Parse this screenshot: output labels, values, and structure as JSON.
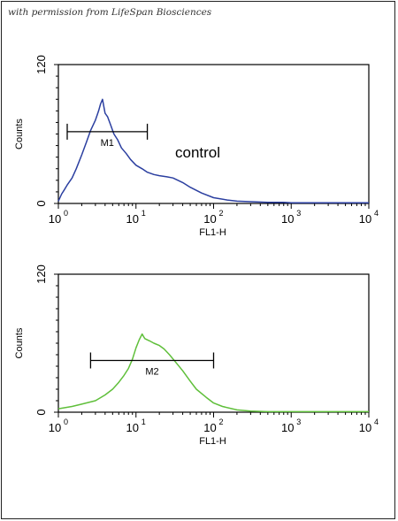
{
  "credit": "with permission from LifeSpan Biosciences",
  "chart_data": [
    {
      "type": "line",
      "ylabel": "Counts",
      "xlabel": "FL1-H",
      "x_scale": "log",
      "xlim": [
        1,
        10000
      ],
      "ylim": [
        0,
        120
      ],
      "y_ticks": [
        "0",
        "120"
      ],
      "x_ticks": [
        {
          "base": "10",
          "exp": "0"
        },
        {
          "base": "10",
          "exp": "1"
        },
        {
          "base": "10",
          "exp": "2"
        },
        {
          "base": "10",
          "exp": "3"
        },
        {
          "base": "10",
          "exp": "4"
        }
      ],
      "color": "#2b3fa0",
      "annotation": "control",
      "marker": {
        "label": "M1",
        "x_start": 1.3,
        "x_end": 14,
        "y": 62
      },
      "x": [
        1,
        1.1,
        1.2,
        1.3,
        1.5,
        1.7,
        2.0,
        2.3,
        2.6,
        3.0,
        3.3,
        3.5,
        3.7,
        4.0,
        4.3,
        4.7,
        5.2,
        5.8,
        6.5,
        7.5,
        8.5,
        10,
        12,
        14,
        17,
        20,
        25,
        30,
        40,
        50,
        70,
        100,
        150,
        200,
        300,
        500,
        800,
        1000,
        2000,
        5000,
        10000
      ],
      "y": [
        2,
        8,
        12,
        16,
        22,
        30,
        42,
        53,
        63,
        72,
        80,
        86,
        90,
        78,
        75,
        68,
        60,
        55,
        48,
        43,
        38,
        33,
        30,
        27,
        25,
        24,
        23,
        22,
        18,
        14,
        9,
        5,
        3,
        2,
        1.5,
        1,
        1,
        0.5,
        0.5,
        0.5,
        0.5
      ]
    },
    {
      "type": "line",
      "ylabel": "Counts",
      "xlabel": "FL1-H",
      "x_scale": "log",
      "xlim": [
        1,
        10000
      ],
      "ylim": [
        0,
        120
      ],
      "y_ticks": [
        "0",
        "120"
      ],
      "x_ticks": [
        {
          "base": "10",
          "exp": "0"
        },
        {
          "base": "10",
          "exp": "1"
        },
        {
          "base": "10",
          "exp": "2"
        },
        {
          "base": "10",
          "exp": "3"
        },
        {
          "base": "10",
          "exp": "4"
        }
      ],
      "color": "#5fbf3a",
      "marker": {
        "label": "M2",
        "x_start": 2.6,
        "x_end": 100,
        "y": 45
      },
      "x": [
        1,
        1.5,
        2,
        3,
        4,
        5,
        6,
        7,
        8,
        9,
        10,
        11,
        12,
        13,
        15,
        17,
        20,
        23,
        27,
        32,
        40,
        50,
        60,
        80,
        100,
        130,
        200,
        300,
        500,
        1000,
        2000,
        10000
      ],
      "y": [
        3,
        5,
        7,
        10,
        15,
        20,
        26,
        32,
        38,
        46,
        56,
        63,
        68,
        64,
        62,
        60,
        58,
        55,
        50,
        44,
        36,
        27,
        20,
        13,
        8,
        5,
        2,
        1,
        0.5,
        0.5,
        0.5,
        0.5
      ]
    }
  ]
}
